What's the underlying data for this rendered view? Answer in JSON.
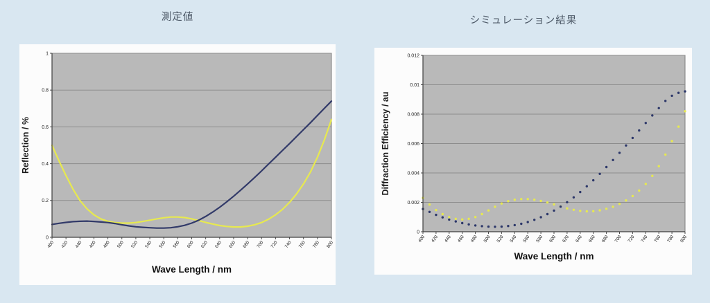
{
  "page": {
    "background_color": "#d9e7f1",
    "panel_color": "#fcfcfc",
    "plot_background": "#b9b9b9",
    "gridline_color": "#8d8d8d",
    "axis_color": "#4a4a4a",
    "tick_text_color": "#222222",
    "title_color": "#4e5a68"
  },
  "chart_data": [
    {
      "type": "line",
      "title": "測定値",
      "xlabel": "Wave Length / nm",
      "ylabel": "Reflection / %",
      "xlim": [
        400,
        800
      ],
      "ylim": [
        0,
        1
      ],
      "grid": true,
      "legend": false,
      "x": [
        400,
        410,
        420,
        430,
        440,
        450,
        460,
        470,
        480,
        490,
        500,
        510,
        520,
        530,
        540,
        550,
        560,
        570,
        580,
        590,
        600,
        610,
        620,
        630,
        640,
        650,
        660,
        670,
        680,
        690,
        700,
        710,
        720,
        730,
        740,
        750,
        760,
        770,
        780,
        790,
        800
      ],
      "x_tick_labels": [
        "400",
        "420",
        "440",
        "460",
        "480",
        "500",
        "520",
        "540",
        "560",
        "580",
        "600",
        "620",
        "640",
        "660",
        "680",
        "700",
        "720",
        "740",
        "760",
        "780",
        "800"
      ],
      "y_ticks": [
        0,
        0.2,
        0.4,
        0.6,
        0.8,
        1
      ],
      "y_tick_labels": [
        "0",
        "0.2",
        "0.4",
        "0.6",
        "0.8",
        "1"
      ],
      "series": [
        {
          "name": "yellow-measured-line",
          "color": "#e7e94f",
          "style": "solid",
          "values": [
            0.5,
            0.415,
            0.335,
            0.262,
            0.2,
            0.155,
            0.122,
            0.1,
            0.087,
            0.08,
            0.077,
            0.077,
            0.08,
            0.086,
            0.093,
            0.1,
            0.106,
            0.11,
            0.11,
            0.107,
            0.1,
            0.091,
            0.081,
            0.072,
            0.064,
            0.059,
            0.056,
            0.056,
            0.06,
            0.068,
            0.08,
            0.098,
            0.122,
            0.152,
            0.19,
            0.235,
            0.29,
            0.355,
            0.435,
            0.53,
            0.64
          ]
        },
        {
          "name": "navy-measured-line",
          "color": "#323a69",
          "style": "solid",
          "values": [
            0.07,
            0.076,
            0.081,
            0.085,
            0.087,
            0.088,
            0.086,
            0.083,
            0.08,
            0.075,
            0.068,
            0.062,
            0.057,
            0.054,
            0.052,
            0.05,
            0.05,
            0.052,
            0.057,
            0.065,
            0.077,
            0.093,
            0.113,
            0.137,
            0.163,
            0.192,
            0.223,
            0.256,
            0.29,
            0.325,
            0.361,
            0.398,
            0.435,
            0.472,
            0.509,
            0.547,
            0.585,
            0.623,
            0.662,
            0.701,
            0.74
          ]
        }
      ]
    },
    {
      "type": "scatter",
      "title": "シミュレーション結果",
      "xlabel": "Wave Length / nm",
      "ylabel": "Diffraction Efficiency / au",
      "xlim": [
        400,
        800
      ],
      "ylim": [
        0,
        0.012
      ],
      "grid": true,
      "legend": false,
      "x": [
        400,
        410,
        420,
        430,
        440,
        450,
        460,
        470,
        480,
        490,
        500,
        510,
        520,
        530,
        540,
        550,
        560,
        570,
        580,
        590,
        600,
        610,
        620,
        630,
        640,
        650,
        660,
        670,
        680,
        690,
        700,
        710,
        720,
        730,
        740,
        750,
        760,
        770,
        780,
        790,
        800
      ],
      "x_tick_labels": [
        "400",
        "420",
        "440",
        "460",
        "480",
        "500",
        "520",
        "540",
        "560",
        "580",
        "600",
        "620",
        "640",
        "660",
        "680",
        "700",
        "720",
        "740",
        "760",
        "780",
        "800"
      ],
      "y_ticks": [
        0,
        0.002,
        0.004,
        0.006,
        0.008,
        0.01,
        0.012
      ],
      "y_tick_labels": [
        "0",
        "0.002",
        "0.004",
        "0.006",
        "0.008",
        "0.01",
        "0.012"
      ],
      "series": [
        {
          "name": "yellow-simulated-dots",
          "color": "#e7e94f",
          "style": "dotted",
          "values": [
            0.0023,
            0.00185,
            0.00148,
            0.0012,
            0.001,
            0.00088,
            0.00084,
            0.00088,
            0.001,
            0.0012,
            0.00145,
            0.0017,
            0.00192,
            0.00208,
            0.00218,
            0.00222,
            0.00222,
            0.00218,
            0.0021,
            0.00199,
            0.00186,
            0.00172,
            0.00159,
            0.00149,
            0.00142,
            0.00139,
            0.0014,
            0.00146,
            0.00156,
            0.0017,
            0.00189,
            0.00213,
            0.00243,
            0.0028,
            0.00325,
            0.0038,
            0.00446,
            0.00525,
            0.00617,
            0.00715,
            0.0082
          ]
        },
        {
          "name": "navy-simulated-dots",
          "color": "#2c3769",
          "style": "dotted",
          "values": [
            0.00155,
            0.00135,
            0.00115,
            0.00098,
            0.00083,
            0.0007,
            0.00059,
            0.0005,
            0.00043,
            0.00038,
            0.00035,
            0.00034,
            0.00035,
            0.00039,
            0.00045,
            0.00054,
            0.00066,
            0.00081,
            0.00099,
            0.0012,
            0.00144,
            0.00171,
            0.00201,
            0.00234,
            0.0027,
            0.00309,
            0.0035,
            0.00394,
            0.0044,
            0.00488,
            0.00537,
            0.00587,
            0.00638,
            0.00689,
            0.0074,
            0.00791,
            0.00841,
            0.0089,
            0.00925,
            0.00945,
            0.00955
          ]
        }
      ]
    }
  ]
}
